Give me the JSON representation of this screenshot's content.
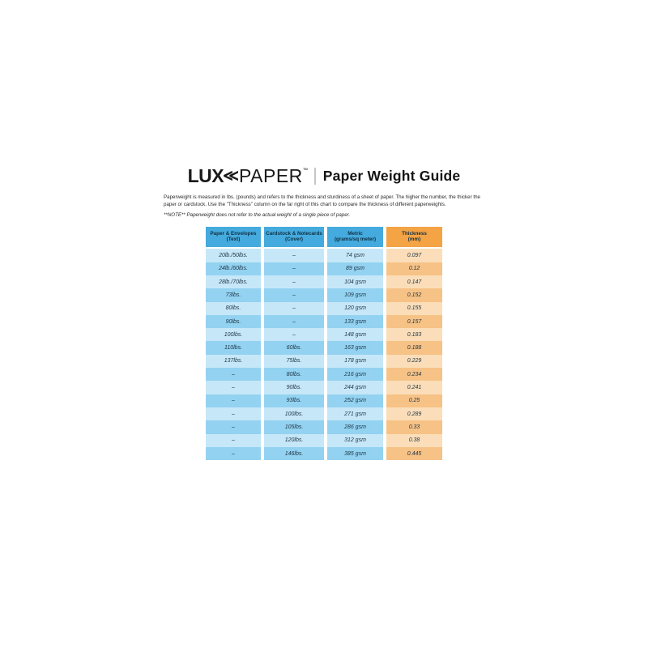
{
  "header": {
    "brand_bold": "LUX",
    "brand_mark": "≪",
    "brand_light": "PAPER",
    "trademark": "™",
    "title": "Paper Weight Guide"
  },
  "intro": {
    "paragraph": "Paperweight is measured in lbs. (pounds) and refers to the thickness and sturdiness of a sheet of paper. The higher the number, the thicker the paper or cardstock. Use the \"Thickness\" column on the far right of this chart to compare the thickness of different paperweights.",
    "note": "**NOTE** Paperweight does not refer to the actual weight of a single piece of paper."
  },
  "colors": {
    "header_blue": "#45AADD",
    "header_orange": "#F4A345",
    "row_blue_light": "#C6E7F8",
    "row_blue_dark": "#93D2F1",
    "row_orange_light": "#FBDEB9",
    "row_orange_dark": "#F7C286"
  },
  "chart_data": {
    "type": "table",
    "title": "Paper Weight Guide",
    "columns": [
      {
        "title": "Paper & Envelopes",
        "subtitle": "(Text)",
        "accent": "blue"
      },
      {
        "title": "Cardstock & Notecards",
        "subtitle": "(Cover)",
        "accent": "blue"
      },
      {
        "title": "Metric",
        "subtitle": "(grams/sq meter)",
        "accent": "blue"
      },
      {
        "title": "Thickness",
        "subtitle": "(mm)",
        "accent": "orange"
      }
    ],
    "rows": [
      [
        "20lb./50lbs.",
        "–",
        "74 gsm",
        "0.097"
      ],
      [
        "24lb./60lbs.",
        "–",
        "89 gsm",
        "0.12"
      ],
      [
        "28lb./70lbs.",
        "–",
        "104 gsm",
        "0.147"
      ],
      [
        "73lbs.",
        "–",
        "109 gsm",
        "0.152"
      ],
      [
        "80lbs.",
        "–",
        "120 gsm",
        "0.155"
      ],
      [
        "90lbs.",
        "–",
        "133 gsm",
        "0.157"
      ],
      [
        "100lbs.",
        "–",
        "148 gsm",
        "0.183"
      ],
      [
        "110lbs.",
        "60lbs.",
        "163 gsm",
        "0.188"
      ],
      [
        "137lbs.",
        "75lbs.",
        "178 gsm",
        "0.229"
      ],
      [
        "–",
        "80lbs.",
        "216 gsm",
        "0.234"
      ],
      [
        "–",
        "90lbs.",
        "244 gsm",
        "0.241"
      ],
      [
        "–",
        "93lbs.",
        "252 gsm",
        "0.25"
      ],
      [
        "–",
        "100lbs.",
        "271 gsm",
        "0.289"
      ],
      [
        "–",
        "105lbs.",
        "286 gsm",
        "0.33"
      ],
      [
        "–",
        "120lbs.",
        "312 gsm",
        "0.38"
      ],
      [
        "–",
        "146lbs.",
        "385 gsm",
        "0.445"
      ]
    ]
  }
}
